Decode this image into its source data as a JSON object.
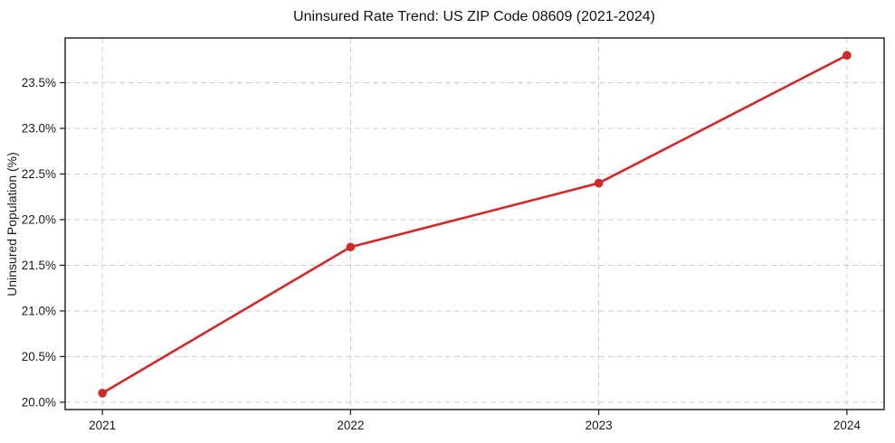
{
  "chart_data": {
    "type": "line",
    "title": "Uninsured Rate Trend: US ZIP Code 08609 (2021-2024)",
    "xlabel": "",
    "ylabel": "Uninsured Population (%)",
    "categories": [
      "2021",
      "2022",
      "2023",
      "2024"
    ],
    "x": [
      2021,
      2022,
      2023,
      2024
    ],
    "values": [
      20.1,
      21.7,
      22.4,
      23.8
    ],
    "xlim": [
      2020.85,
      2024.15
    ],
    "ylim": [
      19.92,
      23.99
    ],
    "y_ticks": [
      20.0,
      20.5,
      21.0,
      21.5,
      22.0,
      22.5,
      23.0,
      23.5
    ],
    "y_tick_labels": [
      "20.0%",
      "20.5%",
      "21.0%",
      "21.5%",
      "22.0%",
      "22.5%",
      "23.0%",
      "23.5%"
    ],
    "grid": true,
    "legend_position": "none",
    "marker_style": "circle",
    "marker_radius": 4.8,
    "line_width": 2.6,
    "colors": {
      "line": "#d62728",
      "marker": "#d62728",
      "grid": "#cfcfcf",
      "spine": "#1a1a1a",
      "text": "#1a1a1a",
      "background": "#ffffff"
    }
  }
}
